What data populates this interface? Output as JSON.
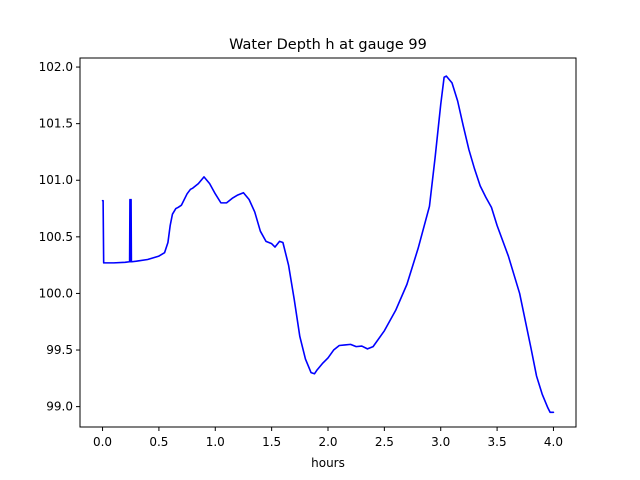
{
  "chart_data": {
    "type": "line",
    "title": "Water Depth h at gauge 99",
    "xlabel": "hours",
    "ylabel": "",
    "xlim": [
      -0.2,
      4.2
    ],
    "ylim": [
      98.82,
      102.08
    ],
    "grid": false,
    "legend": "none",
    "x_ticks": [
      0.0,
      0.5,
      1.0,
      1.5,
      2.0,
      2.5,
      3.0,
      3.5,
      4.0
    ],
    "x_tick_labels": [
      "0.0",
      "0.5",
      "1.0",
      "1.5",
      "2.0",
      "2.5",
      "3.0",
      "3.5",
      "4.0"
    ],
    "y_ticks": [
      99.0,
      99.5,
      100.0,
      100.5,
      101.0,
      101.5,
      102.0
    ],
    "y_tick_labels": [
      "99.0",
      "99.5",
      "100.0",
      "100.5",
      "101.0",
      "101.5",
      "102.0"
    ],
    "series": [
      {
        "color": "#0000ff",
        "x": [
          0.0,
          0.005,
          0.01,
          0.1,
          0.2,
          0.24,
          0.243,
          0.246,
          0.25,
          0.253,
          0.256,
          0.26,
          0.3,
          0.4,
          0.5,
          0.55,
          0.58,
          0.6,
          0.62,
          0.65,
          0.67,
          0.7,
          0.75,
          0.78,
          0.8,
          0.85,
          0.9,
          0.95,
          1.0,
          1.05,
          1.1,
          1.15,
          1.2,
          1.25,
          1.3,
          1.35,
          1.4,
          1.45,
          1.5,
          1.53,
          1.57,
          1.6,
          1.65,
          1.7,
          1.75,
          1.8,
          1.85,
          1.88,
          1.9,
          1.95,
          2.0,
          2.05,
          2.1,
          2.15,
          2.2,
          2.25,
          2.3,
          2.35,
          2.4,
          2.5,
          2.6,
          2.7,
          2.8,
          2.9,
          2.95,
          3.0,
          3.03,
          3.05,
          3.1,
          3.15,
          3.2,
          3.25,
          3.3,
          3.35,
          3.4,
          3.45,
          3.5,
          3.6,
          3.7,
          3.8,
          3.85,
          3.9,
          3.95,
          3.97,
          4.0
        ],
        "y": [
          100.82,
          100.82,
          100.27,
          100.27,
          100.275,
          100.28,
          100.83,
          100.28,
          100.28,
          100.83,
          100.28,
          100.28,
          100.285,
          100.3,
          100.33,
          100.36,
          100.45,
          100.6,
          100.7,
          100.75,
          100.76,
          100.78,
          100.88,
          100.92,
          100.93,
          100.97,
          101.03,
          100.97,
          100.88,
          100.8,
          100.8,
          100.84,
          100.87,
          100.89,
          100.83,
          100.72,
          100.55,
          100.46,
          100.44,
          100.41,
          100.46,
          100.45,
          100.25,
          99.95,
          99.62,
          99.42,
          99.3,
          99.29,
          99.32,
          99.38,
          99.43,
          99.5,
          99.54,
          99.545,
          99.55,
          99.53,
          99.535,
          99.51,
          99.53,
          99.67,
          99.85,
          100.08,
          100.4,
          100.77,
          101.2,
          101.67,
          101.91,
          101.92,
          101.86,
          101.7,
          101.48,
          101.27,
          101.1,
          100.95,
          100.85,
          100.76,
          100.6,
          100.33,
          100.0,
          99.52,
          99.27,
          99.11,
          98.99,
          98.95,
          98.95
        ]
      }
    ]
  }
}
